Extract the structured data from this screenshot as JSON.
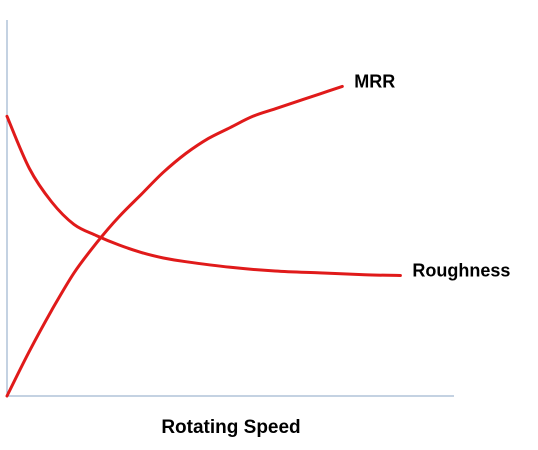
{
  "chart_data": {
    "type": "line",
    "title": "",
    "xlabel": "Rotating Speed",
    "ylabel": "",
    "xlim": [
      0,
      100
    ],
    "ylim": [
      0,
      100
    ],
    "grid": false,
    "legend": "inline-end-labels",
    "series_color": "#e01a1a",
    "series": [
      {
        "name": "MRR",
        "x": [
          0,
          5,
          10,
          15,
          20,
          25,
          30,
          35,
          40,
          45,
          50,
          55,
          60,
          65,
          70,
          75
        ],
        "y": [
          0,
          12,
          23,
          33,
          41,
          48,
          54,
          60,
          65,
          69,
          72,
          75,
          77,
          79,
          81,
          83
        ]
      },
      {
        "name": "Roughness",
        "x": [
          0,
          5,
          10,
          15,
          20,
          25,
          30,
          35,
          40,
          50,
          60,
          70,
          80,
          88
        ],
        "y": [
          75,
          61,
          52,
          46,
          43,
          40.5,
          38.5,
          37,
          36,
          34.5,
          33.5,
          33,
          32.5,
          32.3
        ]
      }
    ]
  }
}
